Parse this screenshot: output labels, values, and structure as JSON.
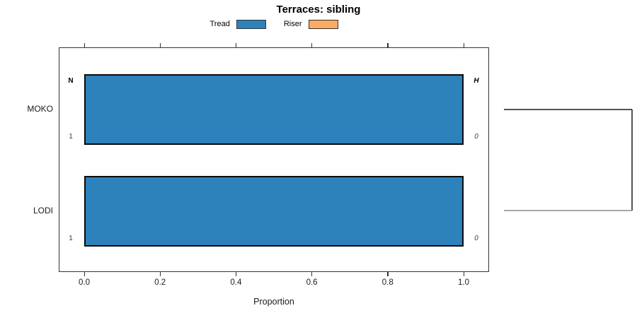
{
  "title": "Terraces: sibling",
  "legend": {
    "items": [
      {
        "label": "Tread",
        "color": "#2d82bc"
      },
      {
        "label": "Riser",
        "color": "#fbac61"
      }
    ]
  },
  "chart_data": {
    "type": "bar",
    "orientation": "horizontal",
    "title": "Terraces: sibling",
    "xlabel": "Proportion",
    "xlim": [
      0.0,
      1.0
    ],
    "xticks": [
      "0.0",
      "0.2",
      "0.4",
      "0.6",
      "0.8",
      "1.0"
    ],
    "categories": [
      "MOKO",
      "LODI"
    ],
    "series": [
      {
        "name": "Tread",
        "color": "#2d82bc",
        "values": [
          1.0,
          1.0
        ]
      },
      {
        "name": "Riser",
        "color": "#fbac61",
        "values": [
          0.0,
          0.0
        ]
      }
    ],
    "row_annotations": {
      "left_header": "N",
      "right_header": "H",
      "left_values": [
        "1",
        "1"
      ],
      "right_values": [
        "0",
        "0"
      ]
    },
    "grid": false,
    "legend_position": "top-center"
  }
}
